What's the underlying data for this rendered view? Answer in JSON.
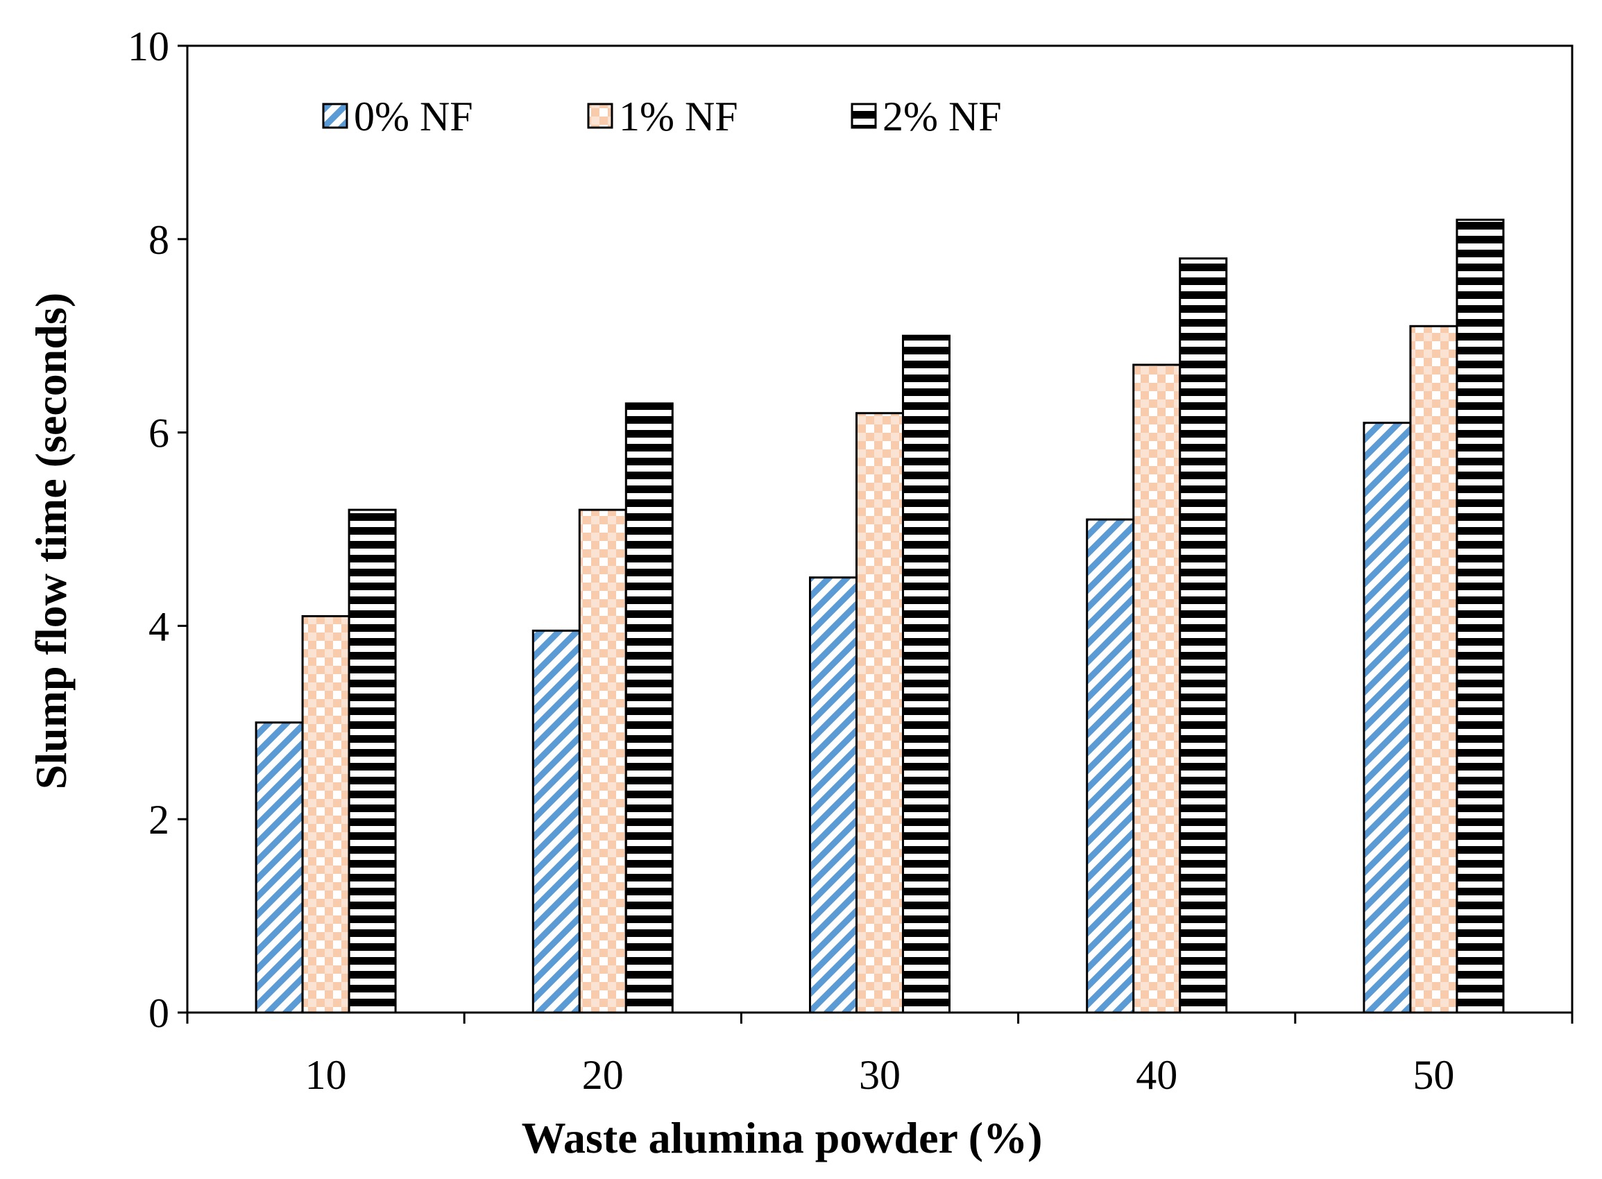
{
  "chart_data": {
    "type": "bar",
    "title": "",
    "xlabel": "Waste alumina powder (%)",
    "ylabel": "Slump flow time (seconds)",
    "categories": [
      "10",
      "20",
      "30",
      "40",
      "50"
    ],
    "series": [
      {
        "name": "0% NF",
        "values": [
          3.0,
          3.95,
          4.5,
          5.1,
          6.1
        ],
        "color": "#5b9bd5",
        "pattern": "diagonal-stripes"
      },
      {
        "name": "1% NF",
        "values": [
          4.1,
          5.2,
          6.2,
          6.7,
          7.1
        ],
        "color": "#f8cbad",
        "pattern": "checker"
      },
      {
        "name": "2% NF",
        "values": [
          5.2,
          6.3,
          7.0,
          7.8,
          8.2
        ],
        "color": "#000000",
        "pattern": "horizontal-stripes"
      }
    ],
    "ylim": [
      0,
      10
    ],
    "yticks": [
      "0",
      "2",
      "4",
      "6",
      "8",
      "10"
    ],
    "grid": false,
    "legend_position": "top-left"
  }
}
